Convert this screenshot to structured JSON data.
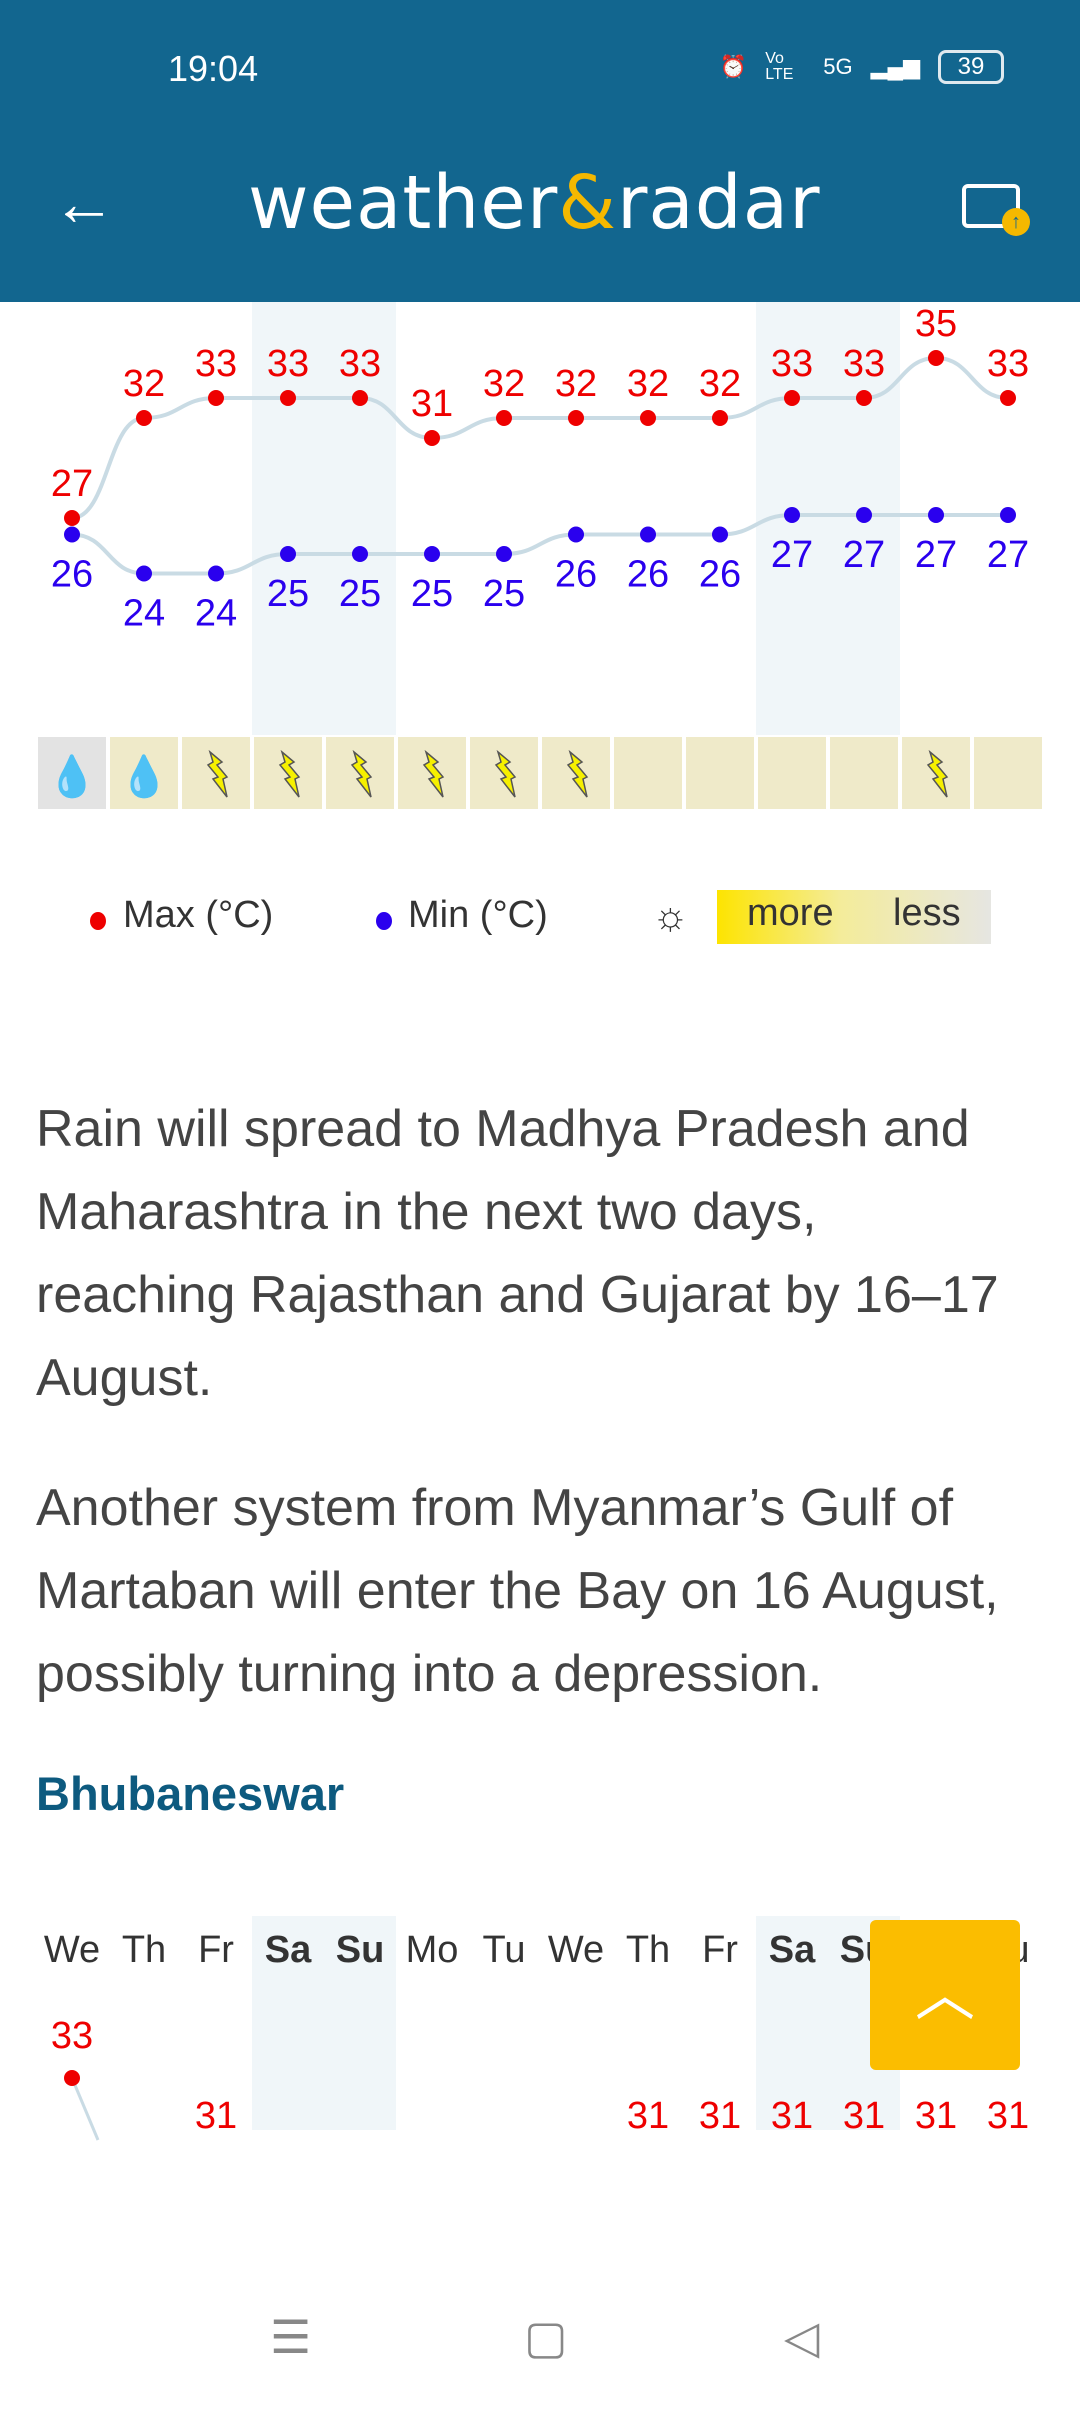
{
  "status_bar": {
    "time": "19:04",
    "battery": "39",
    "network": "5G",
    "volte": "Vo LTE"
  },
  "header": {
    "logo": "weather&radar",
    "logo_part1": "weather",
    "logo_amp": "&",
    "logo_part2": "radar",
    "back_icon": "arrow-left-icon",
    "image_icon": "image-upload-icon"
  },
  "colors": {
    "header": "#12668f",
    "max": "#ee0000",
    "min": "#2a00ee",
    "accent": "#fbbd00",
    "weekend": "#f0f6f9",
    "line": "#c9dbe4"
  },
  "chart_data": [
    {
      "type": "line",
      "series": [
        {
          "name": "Max (°C)",
          "values": [
            27,
            32,
            33,
            33,
            33,
            31,
            32,
            32,
            32,
            32,
            33,
            33,
            35,
            33
          ]
        },
        {
          "name": "Min (°C)",
          "values": [
            26,
            24,
            24,
            25,
            25,
            25,
            25,
            26,
            26,
            26,
            27,
            27,
            27,
            27
          ]
        }
      ],
      "weekend_columns": [
        3,
        4,
        10,
        11
      ],
      "weather_icons": [
        "rain",
        "rain",
        "thunder",
        "thunder",
        "thunder",
        "thunder",
        "thunder",
        "thunder",
        "",
        "",
        "",
        "",
        "thunder",
        ""
      ],
      "sunshine": [
        "low",
        "more",
        "more",
        "more",
        "more",
        "more",
        "more",
        "more",
        "more",
        "more",
        "more",
        "more",
        "more",
        "more"
      ]
    },
    {
      "type": "line",
      "categories": [
        "We",
        "Th",
        "Fr",
        "Sa",
        "Su",
        "Mo",
        "Tu",
        "We",
        "Th",
        "Fr",
        "Sa",
        "Su",
        "Th",
        "Tu"
      ],
      "series": [
        {
          "values": [
            33,
            null,
            31,
            null,
            null,
            null,
            null,
            null,
            31,
            31,
            31,
            31,
            31,
            31
          ]
        }
      ],
      "weekend_columns": [
        3,
        4,
        10,
        11
      ]
    }
  ],
  "legend": {
    "max": "Max (°C)",
    "min": "Min (°C)",
    "more": "more",
    "less": "less",
    "sun_icon": "sun-icon"
  },
  "article": {
    "p1": [
      "Rain will spread to Madhya Pradesh and",
      "Maharashtra in the next two days,",
      "reaching Rajasthan and Gujarat by 16–17",
      "August."
    ],
    "p2": [
      "Another system from Myanmar’s Gulf of",
      "Martaban will enter the Bay on 16 August,",
      "possibly turning into a depression."
    ],
    "city": "Bhubaneswar"
  },
  "fab_icon": "chevron-up-icon",
  "nav": {
    "menu": "☰",
    "home": "▢",
    "back": "◁"
  }
}
